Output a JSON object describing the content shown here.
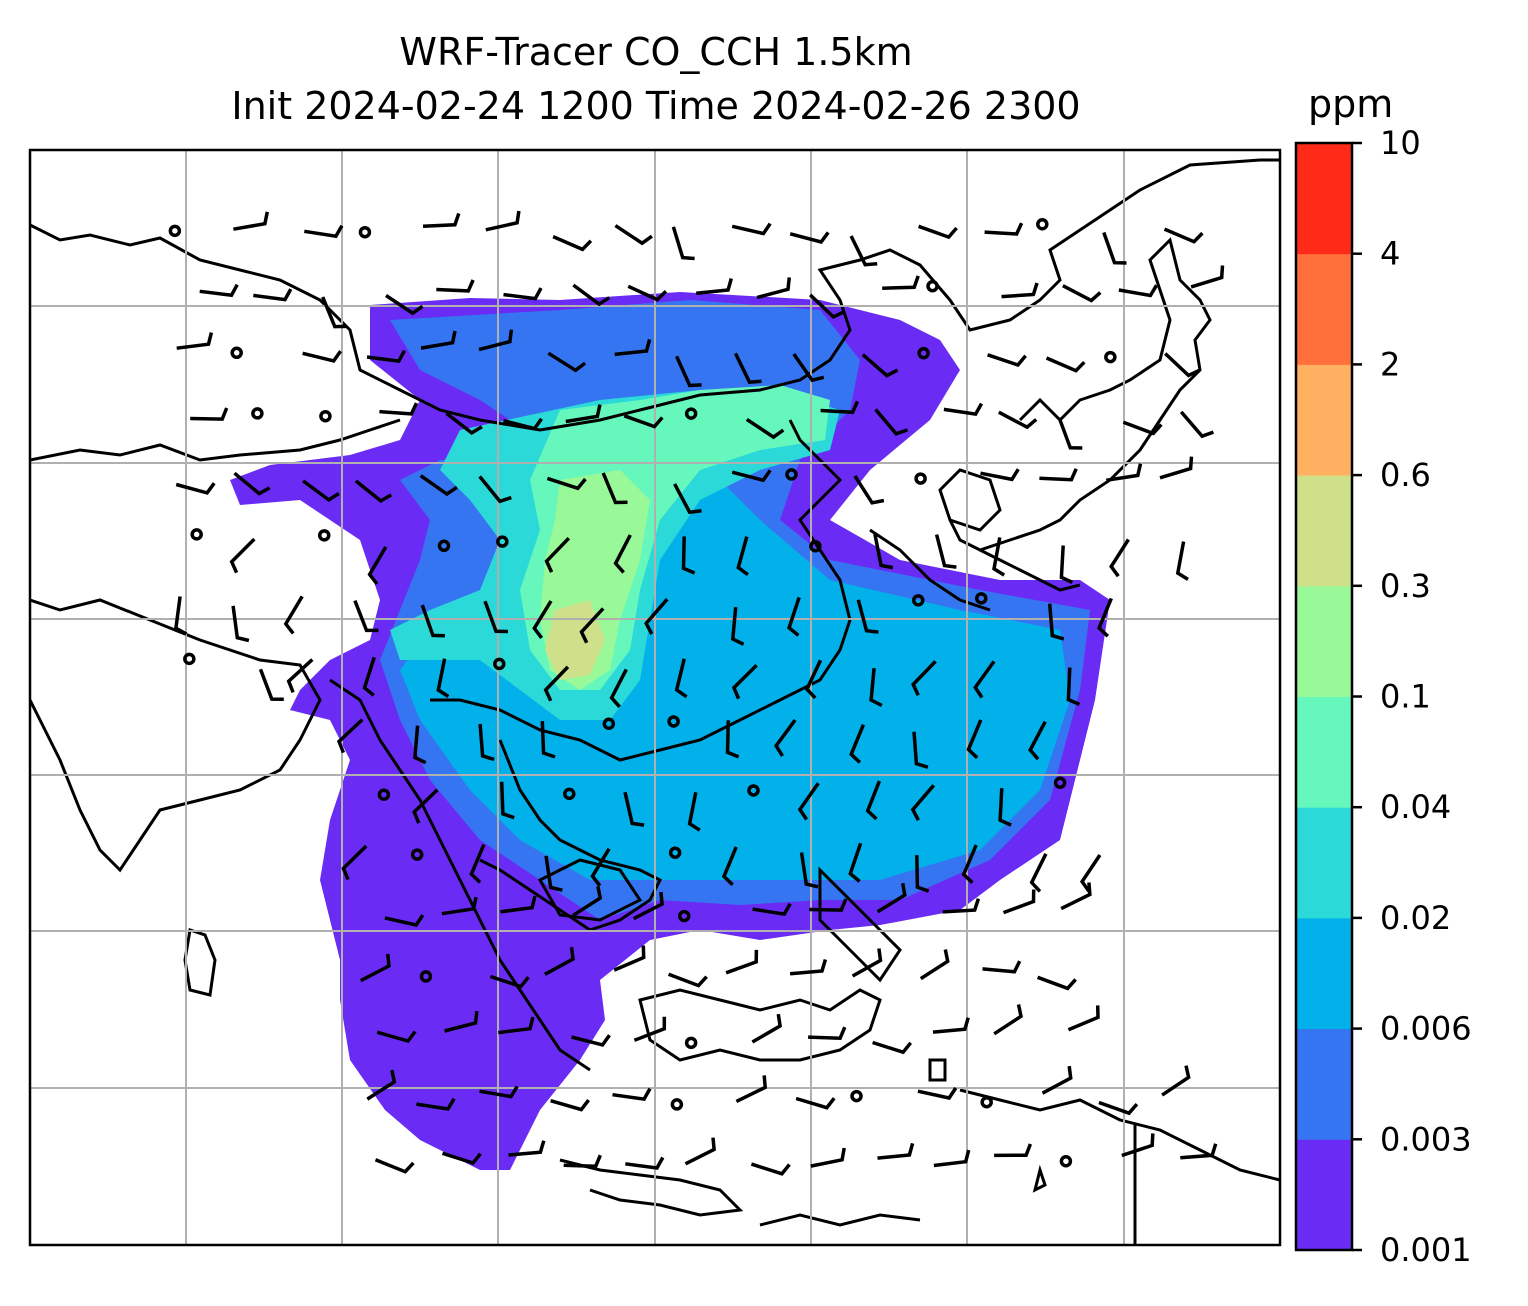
{
  "title": {
    "line1": "WRF-Tracer CO_CCH 1.5km",
    "line2": "Init 2024-02-24 1200 Time 2024-02-26 2300"
  },
  "colorbar": {
    "unit": "ppm",
    "levels": [
      "0.001",
      "0.003",
      "0.006",
      "0.02",
      "0.04",
      "0.1",
      "0.3",
      "0.6",
      "2",
      "4",
      "10"
    ],
    "colors": [
      "#6a2cf5",
      "#3575f2",
      "#03b1ea",
      "#2ad9d8",
      "#66f7bc",
      "#99f898",
      "#cfe08a",
      "#ffb060",
      "#ff703b",
      "#ff2a17"
    ]
  },
  "map": {
    "gridlines": true,
    "overlay": "wind barbs",
    "background": "#ffffff"
  }
}
